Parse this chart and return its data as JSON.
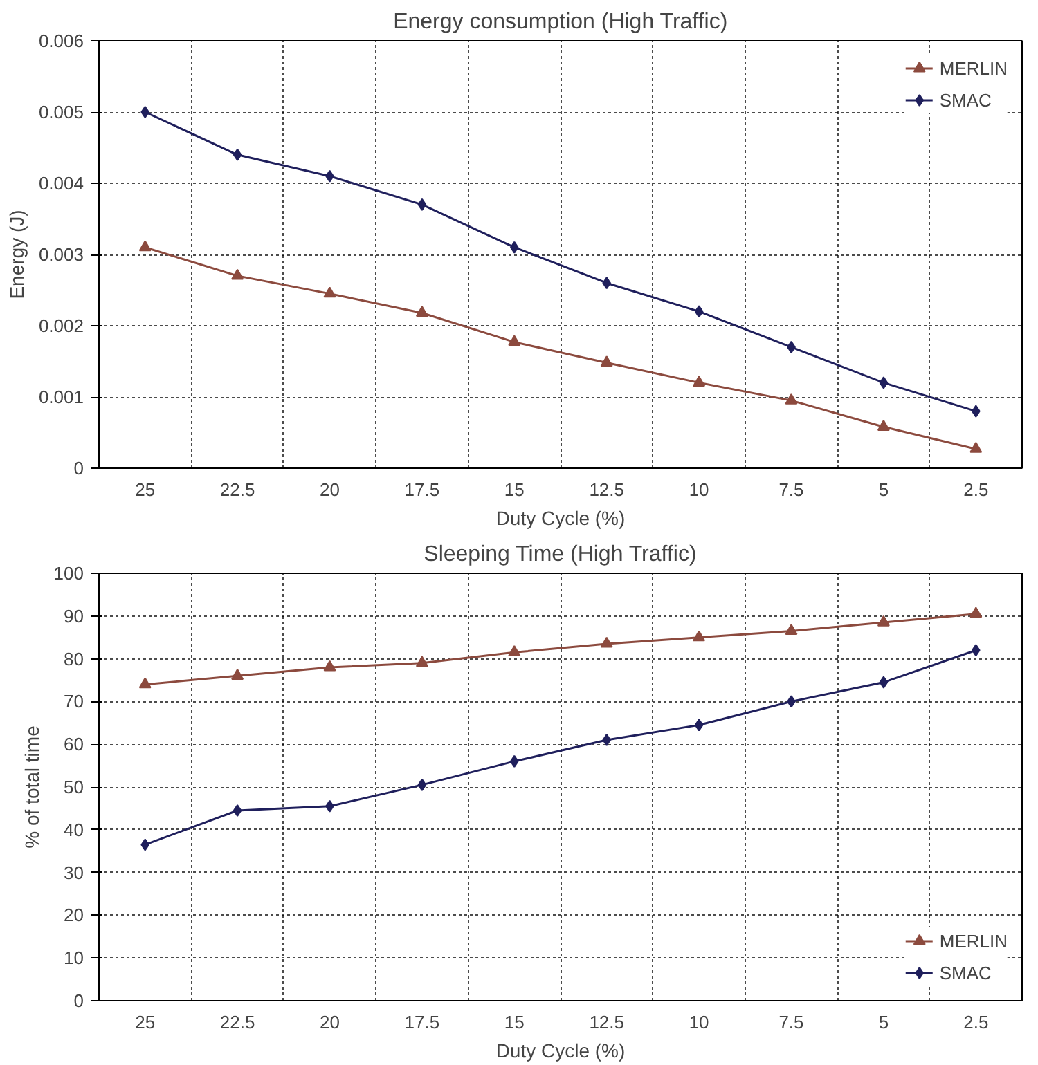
{
  "chart_data": [
    {
      "type": "line",
      "title": "Energy consumption (High Traffic)",
      "xlabel": "Duty Cycle (%)",
      "ylabel": "Energy (J)",
      "categories": [
        "25",
        "22.5",
        "20",
        "17.5",
        "15",
        "12.5",
        "10",
        "7.5",
        "5",
        "2.5"
      ],
      "ylim": [
        0,
        0.006
      ],
      "yticks": [
        0,
        0.001,
        0.002,
        0.003,
        0.004,
        0.005,
        0.006
      ],
      "grid": true,
      "legend": "top right",
      "series": [
        {
          "name": "MERLIN",
          "color": "#8c4a3e",
          "marker": "triangle",
          "values": [
            0.0031,
            0.0027,
            0.00245,
            0.00218,
            0.00177,
            0.00148,
            0.0012,
            0.00095,
            0.00058,
            0.00027
          ]
        },
        {
          "name": "SMAC",
          "color": "#1f1f5c",
          "marker": "diamond",
          "values": [
            0.005,
            0.0044,
            0.0041,
            0.0037,
            0.0031,
            0.0026,
            0.0022,
            0.0017,
            0.0012,
            0.0008
          ]
        }
      ]
    },
    {
      "type": "line",
      "title": "Sleeping Time (High Traffic)",
      "xlabel": "Duty Cycle (%)",
      "ylabel": "% of total time",
      "categories": [
        "25",
        "22.5",
        "20",
        "17.5",
        "15",
        "12.5",
        "10",
        "7.5",
        "5",
        "2.5"
      ],
      "ylim": [
        0,
        100
      ],
      "yticks": [
        0,
        10,
        20,
        30,
        40,
        50,
        60,
        70,
        80,
        90,
        100
      ],
      "grid": true,
      "legend": "bottom right",
      "series": [
        {
          "name": "MERLIN",
          "color": "#8c4a3e",
          "marker": "triangle",
          "values": [
            74,
            76,
            78,
            79,
            81.5,
            83.5,
            85,
            86.5,
            88.5,
            90.5
          ]
        },
        {
          "name": "SMAC",
          "color": "#1f1f5c",
          "marker": "diamond",
          "values": [
            36.5,
            44.5,
            45.5,
            50.5,
            56,
            61,
            64.5,
            70,
            74.5,
            82
          ]
        }
      ]
    }
  ]
}
